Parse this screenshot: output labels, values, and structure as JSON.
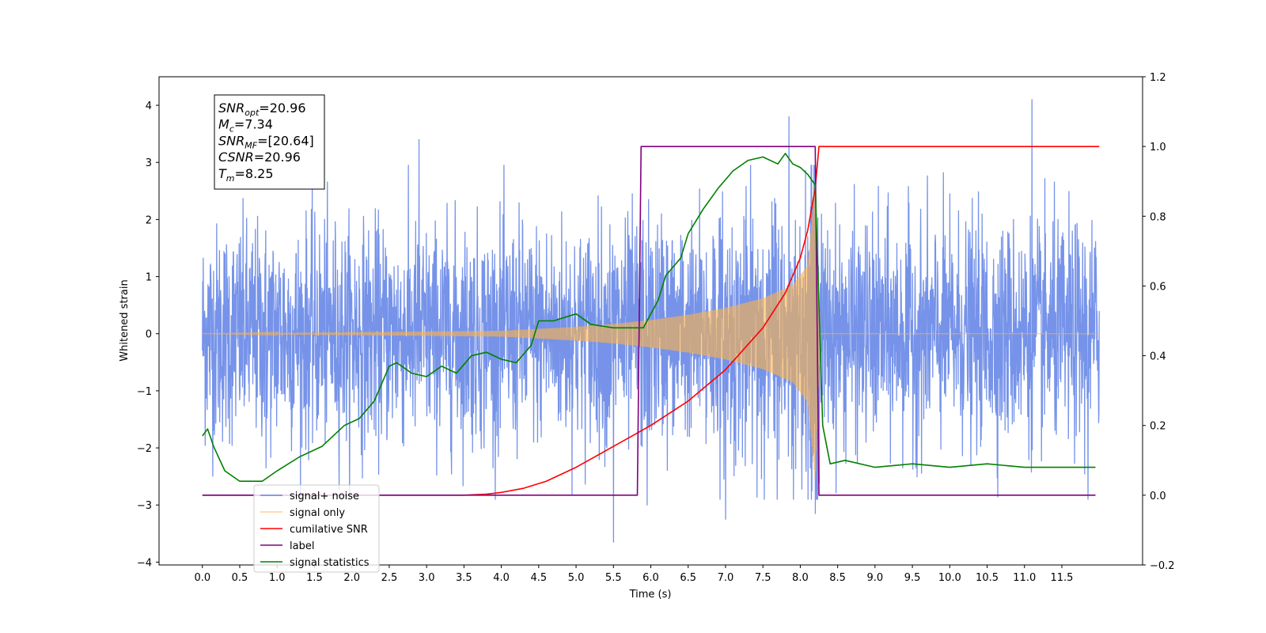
{
  "chart_data": {
    "type": "line",
    "xlabel": "Time (s)",
    "ylabel": "Whitened strain",
    "xlim": [
      -0.58,
      12.58
    ],
    "ylim": [
      -4.05,
      4.5
    ],
    "ylim_right": [
      -0.2,
      1.2
    ],
    "x_ticks": [
      "0.0",
      "0.5",
      "1.0",
      "1.5",
      "2.0",
      "2.5",
      "3.0",
      "3.5",
      "4.0",
      "4.5",
      "5.0",
      "5.5",
      "6.0",
      "6.5",
      "7.0",
      "7.5",
      "8.0",
      "8.5",
      "9.0",
      "9.5",
      "10.0",
      "10.5",
      "11.0",
      "11.5"
    ],
    "y_ticks_left": [
      "4",
      "3",
      "2",
      "1",
      "0",
      "−1",
      "−2",
      "−3",
      "−4"
    ],
    "y_ticks_right": [
      "1.2",
      "1.0",
      "0.8",
      "0.6",
      "0.4",
      "0.2",
      "0.0",
      "−0.2"
    ],
    "grid": false,
    "legend_position": "lower-left",
    "annotation": {
      "lines": [
        {
          "base": "SNR",
          "sub": "opt",
          "value": "=20.96"
        },
        {
          "base": "M",
          "sub": "c",
          "value": "=7.34"
        },
        {
          "base": "SNR",
          "sub": "MF",
          "value": "=[20.64]"
        },
        {
          "base": "CSNR",
          "sub": "",
          "value": "=20.96"
        },
        {
          "base": "T",
          "sub": "m",
          "value": "=8.25"
        }
      ]
    },
    "series": [
      {
        "name": "signal+ noise",
        "axis": "left",
        "color": "#4169e1",
        "kind": "noise",
        "x_range": [
          0.0,
          12.0
        ],
        "noise_sigma": 0.95,
        "spikes": [
          [
            0.85,
            -2.35
          ],
          [
            2.9,
            3.4
          ],
          [
            5.5,
            -3.65
          ],
          [
            5.95,
            -3.0
          ],
          [
            7.0,
            -3.25
          ],
          [
            7.85,
            3.8
          ],
          [
            8.2,
            -3.15
          ],
          [
            11.1,
            4.1
          ],
          [
            11.85,
            -2.9
          ]
        ]
      },
      {
        "name": "signal only",
        "axis": "left",
        "color": "#ffb347",
        "kind": "chirp",
        "x_range": [
          0.0,
          12.0
        ],
        "envelope": [
          [
            0.0,
            0.0
          ],
          [
            4.0,
            0.05
          ],
          [
            5.0,
            0.12
          ],
          [
            5.5,
            0.17
          ],
          [
            6.0,
            0.24
          ],
          [
            6.5,
            0.33
          ],
          [
            7.0,
            0.45
          ],
          [
            7.5,
            0.62
          ],
          [
            7.9,
            0.85
          ],
          [
            8.1,
            1.2
          ],
          [
            8.2,
            2.6
          ],
          [
            8.27,
            0.0
          ],
          [
            12.0,
            0.0
          ]
        ]
      },
      {
        "name": "cumilative SNR",
        "axis": "right",
        "color": "#ff0000",
        "x": [
          0.0,
          3.5,
          3.8,
          4.0,
          4.3,
          4.6,
          5.0,
          5.5,
          6.0,
          6.5,
          7.0,
          7.5,
          7.8,
          8.0,
          8.1,
          8.2,
          8.25,
          8.3,
          12.0
        ],
        "y": [
          0.0,
          0.0,
          0.003,
          0.008,
          0.02,
          0.04,
          0.08,
          0.14,
          0.2,
          0.27,
          0.36,
          0.48,
          0.58,
          0.68,
          0.76,
          0.88,
          1.0,
          1.0,
          1.0
        ]
      },
      {
        "name": "label",
        "axis": "right",
        "color": "#800080",
        "x": [
          0.0,
          5.82,
          5.87,
          8.2,
          8.25,
          11.95
        ],
        "y": [
          0.0,
          0.0,
          1.0,
          1.0,
          0.0,
          0.0
        ]
      },
      {
        "name": "signal statistics",
        "axis": "right",
        "color": "#008000",
        "x": [
          0.0,
          0.07,
          0.15,
          0.3,
          0.5,
          0.8,
          1.0,
          1.3,
          1.6,
          1.9,
          2.1,
          2.3,
          2.5,
          2.6,
          2.8,
          3.0,
          3.2,
          3.4,
          3.6,
          3.8,
          4.0,
          4.2,
          4.4,
          4.5,
          4.7,
          5.0,
          5.2,
          5.5,
          5.9,
          6.0,
          6.1,
          6.2,
          6.4,
          6.5,
          6.7,
          6.9,
          7.1,
          7.3,
          7.5,
          7.7,
          7.8,
          7.9,
          8.0,
          8.1,
          8.2,
          8.3,
          8.4,
          8.6,
          9.0,
          9.5,
          10.0,
          10.5,
          11.0,
          11.5,
          11.95
        ],
        "y": [
          0.17,
          0.19,
          0.14,
          0.07,
          0.04,
          0.04,
          0.07,
          0.11,
          0.14,
          0.2,
          0.22,
          0.27,
          0.37,
          0.38,
          0.35,
          0.34,
          0.37,
          0.35,
          0.4,
          0.41,
          0.39,
          0.38,
          0.43,
          0.5,
          0.5,
          0.52,
          0.49,
          0.48,
          0.48,
          0.52,
          0.56,
          0.63,
          0.68,
          0.75,
          0.82,
          0.88,
          0.93,
          0.96,
          0.97,
          0.95,
          0.98,
          0.95,
          0.94,
          0.92,
          0.89,
          0.2,
          0.09,
          0.1,
          0.08,
          0.09,
          0.08,
          0.09,
          0.08,
          0.08,
          0.08
        ]
      }
    ]
  }
}
